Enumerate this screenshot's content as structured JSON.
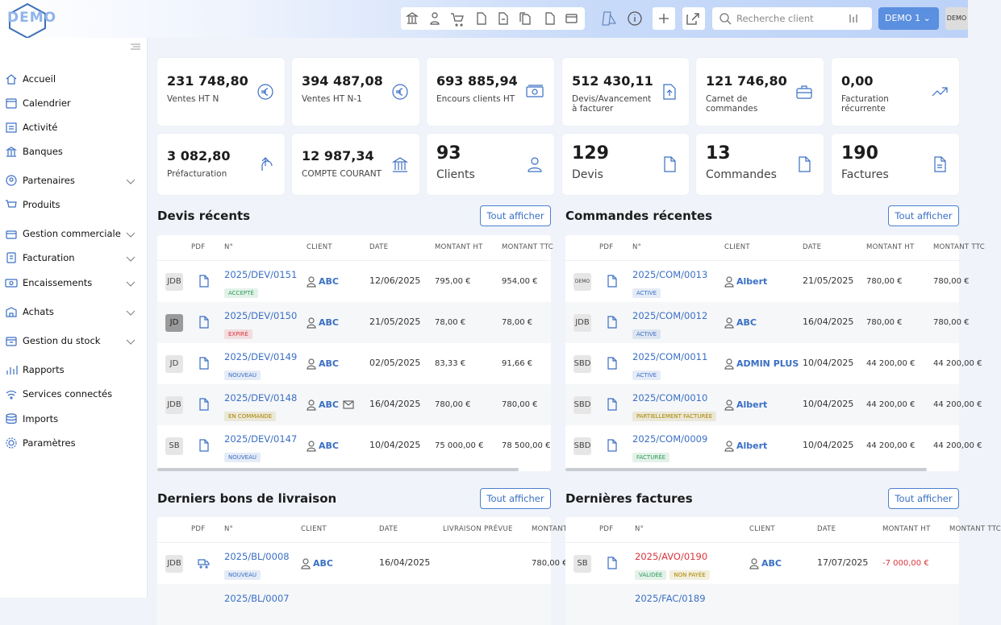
{
  "header": {
    "logo": "DEMO",
    "search_placeholder": "Recherche client",
    "user": "DEMO 1",
    "avatar": "DEMO"
  },
  "sidebar": [
    {
      "label": "Accueil"
    },
    {
      "label": "Calendrier"
    },
    {
      "label": "Activité"
    },
    {
      "label": "Banques"
    },
    {
      "label": "Partenaires",
      "expandable": true
    },
    {
      "label": "Produits"
    },
    {
      "label": "Gestion commerciale",
      "expandable": true
    },
    {
      "label": "Facturation",
      "expandable": true
    },
    {
      "label": "Encaissements",
      "expandable": true
    },
    {
      "label": "Achats",
      "expandable": true
    },
    {
      "label": "Gestion du stock",
      "expandable": true
    },
    {
      "label": "Rapports"
    },
    {
      "label": "Services connectés"
    },
    {
      "label": "Imports"
    },
    {
      "label": "Paramètres"
    }
  ],
  "kpis": [
    {
      "value": "231 748,80",
      "label": "Ventes HT N"
    },
    {
      "value": "394 487,08",
      "label": "Ventes HT N-1"
    },
    {
      "value": "693 885,94",
      "label": "Encours clients HT"
    },
    {
      "value": "512 430,11",
      "label": "Devis/Avancement à facturer"
    },
    {
      "value": "121 746,80",
      "label": "Carnet de commandes"
    },
    {
      "value": "0,00",
      "label": "Facturation récurrente"
    },
    {
      "value": "3 082,80",
      "label": "Préfacturation"
    },
    {
      "value": "12 987,34",
      "label": "COMPTE COURANT"
    },
    {
      "value": "93",
      "label": "Clients"
    },
    {
      "value": "129",
      "label": "Devis"
    },
    {
      "value": "13",
      "label": "Commandes"
    },
    {
      "value": "190",
      "label": "Factures"
    }
  ],
  "sections": [
    {
      "title": "Devis récents",
      "button": "Tout afficher",
      "columns": [
        "PDF",
        "N°",
        "CLIENT",
        "DATE",
        "MONTANT HT",
        "MONTANT TTC"
      ],
      "rows": [
        {
          "avatar": "JDB",
          "n": "2025/DEV/0151",
          "tags": [
            {
              "label": "ACCEPTÉ",
              "color": "#2f9a5a"
            }
          ],
          "client": "ABC",
          "date": "12/06/2025",
          "ht": "795,00 €",
          "ttc": "954,00 €"
        },
        {
          "avatar": "JD",
          "avatar_dark": true,
          "n": "2025/DEV/0150",
          "tags": [
            {
              "label": "EXPIRÉ",
              "color": "#d9363e"
            }
          ],
          "client": "ABC",
          "date": "21/05/2025",
          "ht": "78,00 €",
          "ttc": "78,00 €"
        },
        {
          "avatar": "JD",
          "n": "2025/DEV/0149",
          "tags": [
            {
              "label": "NOUVEAU",
              "color": "#3a6fc4"
            }
          ],
          "client": "ABC",
          "date": "02/05/2025",
          "ht": "83,33 €",
          "ttc": "91,66 €"
        },
        {
          "avatar": "JDB",
          "n": "2025/DEV/0148",
          "tags": [
            {
              "label": "EN COMMANDE",
              "color": "#a88400"
            }
          ],
          "client": "ABC",
          "mail": true,
          "date": "16/04/2025",
          "ht": "780,00 €",
          "ttc": "780,00 €"
        },
        {
          "avatar": "SB",
          "n": "2025/DEV/0147",
          "tags": [
            {
              "label": "NOUVEAU",
              "color": "#3a6fc4"
            }
          ],
          "client": "ABC",
          "date": "10/04/2025",
          "ht": "75 000,00 €",
          "ttc": "78 500,00 €"
        }
      ]
    },
    {
      "title": "Commandes récentes",
      "button": "Tout afficher",
      "columns": [
        "PDF",
        "N°",
        "CLIENT",
        "DATE",
        "MONTANT HT",
        "MONTANT TTC"
      ],
      "rows": [
        {
          "avatar": "DEMO",
          "n": "2025/COM/0013",
          "tags": [
            {
              "label": "ACTIVE",
              "color": "#3a6fc4"
            }
          ],
          "client": "Albert",
          "date": "21/05/2025",
          "ht": "780,00 €",
          "ttc": "780,00 €"
        },
        {
          "avatar": "JDB",
          "n": "2025/COM/0012",
          "tags": [
            {
              "label": "ACTIVE",
              "color": "#3a6fc4"
            }
          ],
          "client": "ABC",
          "date": "16/04/2025",
          "ht": "780,00 €",
          "ttc": "780,00 €"
        },
        {
          "avatar": "SBD",
          "n": "2025/COM/0011",
          "tags": [
            {
              "label": "ACTIVE",
              "color": "#3a6fc4"
            }
          ],
          "client": "ADMIN PLUS",
          "date": "10/04/2025",
          "ht": "44 200,00 €",
          "ttc": "44 200,00 €"
        },
        {
          "avatar": "SBD",
          "n": "2025/COM/0010",
          "tags": [
            {
              "label": "PARTIELLEMENT FACTURÉE",
              "color": "#a88400"
            }
          ],
          "client": "Albert",
          "date": "10/04/2025",
          "ht": "44 200,00 €",
          "ttc": "44 200,00 €"
        },
        {
          "avatar": "SBD",
          "n": "2025/COM/0009",
          "tags": [
            {
              "label": "FACTURÉE",
              "color": "#2f9a5a"
            }
          ],
          "client": "Albert",
          "date": "10/04/2025",
          "ht": "44 200,00 €",
          "ttc": "44 200,00 €"
        }
      ]
    },
    {
      "title": "Derniers bons de livraison",
      "button": "Tout afficher",
      "columns": [
        "PDF",
        "N°",
        "CLIENT",
        "DATE",
        "LIVRAISON PRÉVUE",
        "MONTANT HT"
      ],
      "rows": [
        {
          "avatar": "JDB",
          "n": "2025/BL/0008",
          "tags": [
            {
              "label": "NOUVEAU",
              "color": "#3a6fc4"
            }
          ],
          "client": "ABC",
          "date": "16/04/2025",
          "ttc": "780,00 €"
        },
        {
          "n": "2025/BL/0007"
        }
      ]
    },
    {
      "title": "Dernières factures",
      "button": "Tout afficher",
      "columns": [
        "PDF",
        "N°",
        "CLIENT",
        "DATE",
        "MONTANT HT",
        "MONTANT TTC"
      ],
      "rows": [
        {
          "avatar": "SB",
          "n": "2025/AVO/0190",
          "negative": true,
          "tags": [
            {
              "label": "VALIDÉE",
              "color": "#2f9a5a"
            },
            {
              "label": "NON PAYÉE",
              "color": "#a88400"
            }
          ],
          "client": "ABC",
          "date": "17/07/2025",
          "ht": "-7 000,00 €"
        },
        {
          "n": "2025/FAC/0189"
        }
      ]
    }
  ]
}
